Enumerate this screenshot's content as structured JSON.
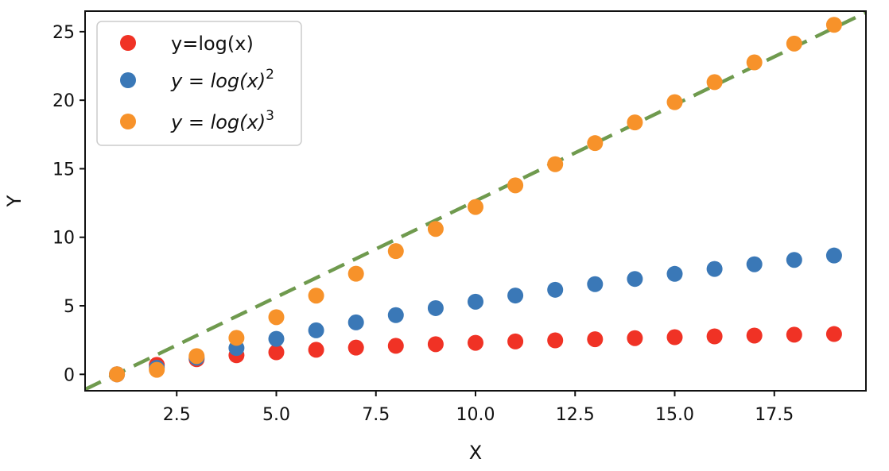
{
  "chart_data": {
    "type": "scatter",
    "xlabel": "X",
    "ylabel": "Y",
    "xlim": [
      0.2,
      19.8
    ],
    "ylim": [
      -1.2,
      26.5
    ],
    "x_ticks": [
      2.5,
      5.0,
      7.5,
      10.0,
      12.5,
      15.0,
      17.5
    ],
    "x_tick_labels": [
      "2.5",
      "5.0",
      "7.5",
      "10.0",
      "12.5",
      "15.0",
      "17.5"
    ],
    "y_ticks": [
      0,
      5,
      10,
      15,
      20,
      25
    ],
    "y_tick_labels": [
      "0",
      "5",
      "10",
      "15",
      "20",
      "25"
    ],
    "grid": false,
    "legend_position": "top-left",
    "x": [
      1,
      2,
      3,
      4,
      5,
      6,
      7,
      8,
      9,
      10,
      11,
      12,
      13,
      14,
      15,
      16,
      17,
      18,
      19
    ],
    "series": [
      {
        "name": "y=log(x)",
        "color": "#f03225",
        "values": [
          0,
          0.69,
          1.1,
          1.39,
          1.61,
          1.79,
          1.95,
          2.08,
          2.2,
          2.3,
          2.4,
          2.48,
          2.56,
          2.64,
          2.71,
          2.77,
          2.83,
          2.89,
          2.94
        ]
      },
      {
        "name": "y = log(x)^2",
        "color": "#3a78b7",
        "values": [
          0,
          0.48,
          1.21,
          1.92,
          2.59,
          3.21,
          3.79,
          4.32,
          4.83,
          5.3,
          5.75,
          6.17,
          6.58,
          6.96,
          7.33,
          7.69,
          8.03,
          8.35,
          8.67
        ]
      },
      {
        "name": "y = log(x)^3",
        "color": "#f7922a",
        "values": [
          0,
          0.33,
          1.33,
          2.66,
          4.17,
          5.74,
          7.34,
          8.99,
          10.61,
          12.21,
          13.79,
          15.33,
          16.87,
          18.38,
          19.86,
          21.32,
          22.76,
          24.13,
          25.5
        ]
      }
    ],
    "reference_line": {
      "style": "dashed",
      "color": "#6f9a4e",
      "points": [
        [
          0.2,
          -1.1
        ],
        [
          19.8,
          26.4
        ]
      ]
    }
  },
  "legend": {
    "items": [
      {
        "color": "#f03225",
        "text": "y=log(x)",
        "math": false,
        "base": "",
        "sup": ""
      },
      {
        "color": "#3a78b7",
        "text": "",
        "math": true,
        "base": "y = log(x)",
        "sup": "2"
      },
      {
        "color": "#f7922a",
        "text": "",
        "math": true,
        "base": "y = log(x)",
        "sup": "3"
      }
    ]
  }
}
